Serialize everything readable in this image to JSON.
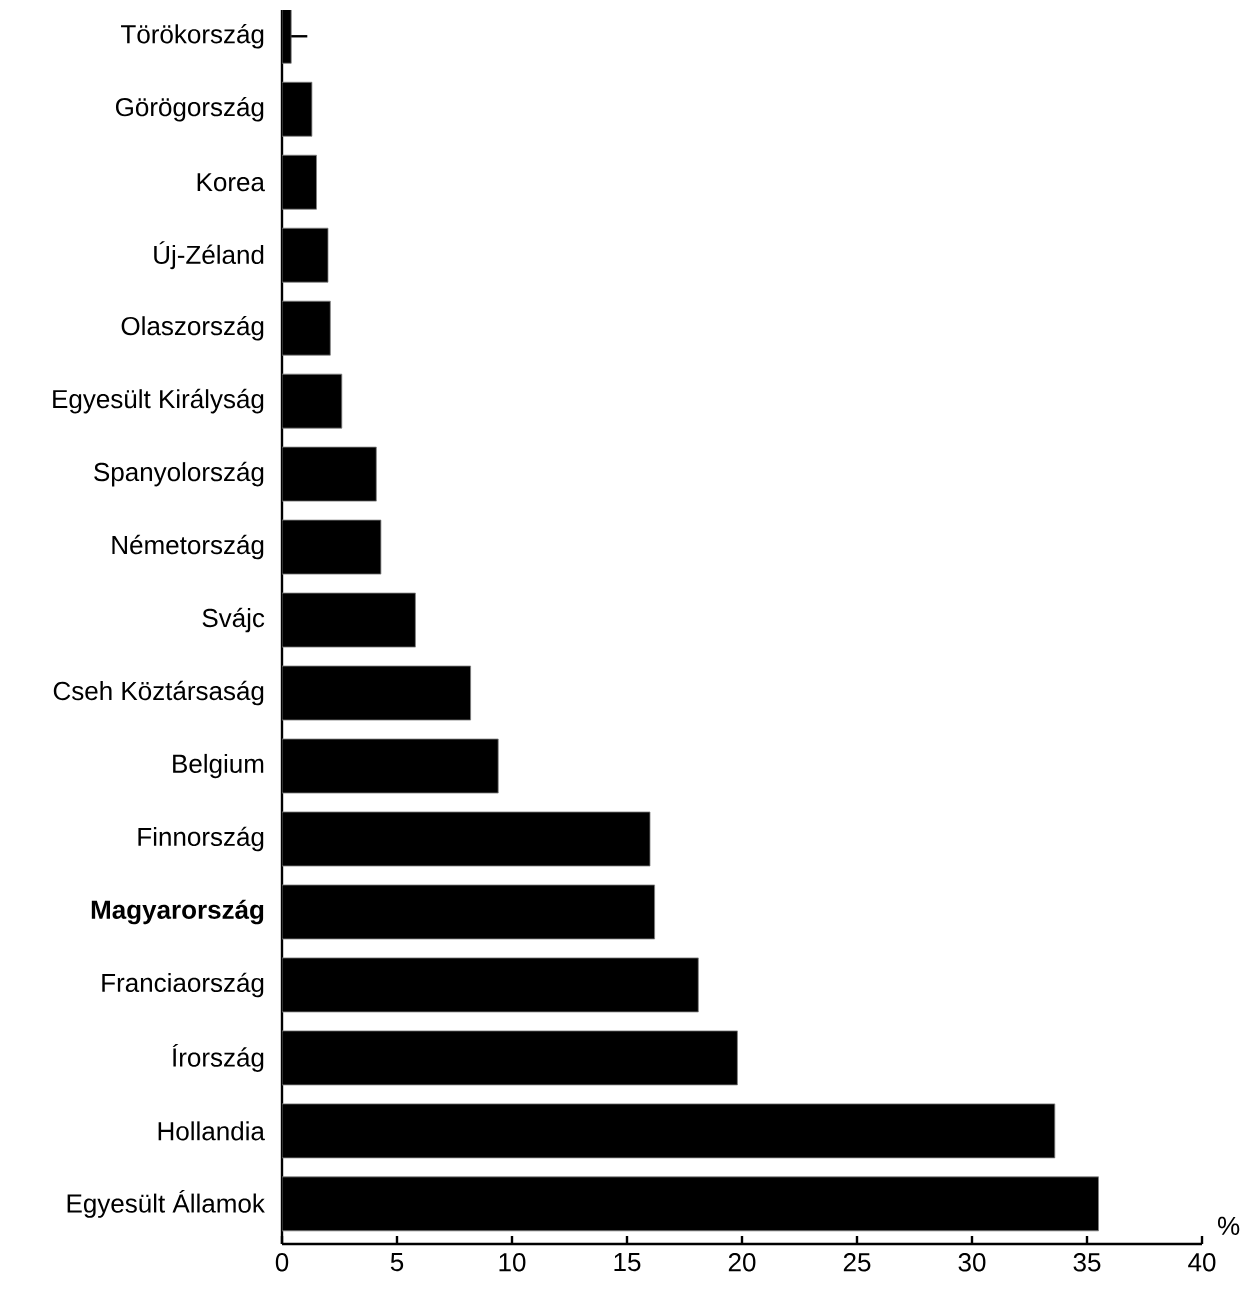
{
  "chart_data": {
    "type": "bar",
    "orientation": "horizontal",
    "xlabel": "%",
    "categories": [
      "Törökország",
      "Görögország",
      "Korea",
      "Új-Zéland",
      "Olaszország",
      "Egyesült Királyság",
      "Spanyolország",
      "Németország",
      "Svájc",
      "Cseh Köztársaság",
      "Belgium",
      "Finnország",
      "**Magyarország**",
      "Franciaország",
      "Írország",
      "Hollandia",
      "Egyesült Államok"
    ],
    "values": [
      0.4,
      1.3,
      1.5,
      2.0,
      2.1,
      2.6,
      4.1,
      4.3,
      5.8,
      8.2,
      9.4,
      16.0,
      16.2,
      18.1,
      19.8,
      33.6,
      35.5
    ],
    "errors": [
      [
        0.4,
        1.1
      ],
      null,
      null,
      null,
      null,
      null,
      null,
      null,
      null,
      null,
      null,
      null,
      null,
      null,
      null,
      null,
      null
    ],
    "color": "#000000",
    "xlim": [
      0,
      40
    ],
    "xticks": [
      0,
      5,
      10,
      15,
      20,
      25,
      30,
      35,
      40
    ],
    "grid": false
  }
}
